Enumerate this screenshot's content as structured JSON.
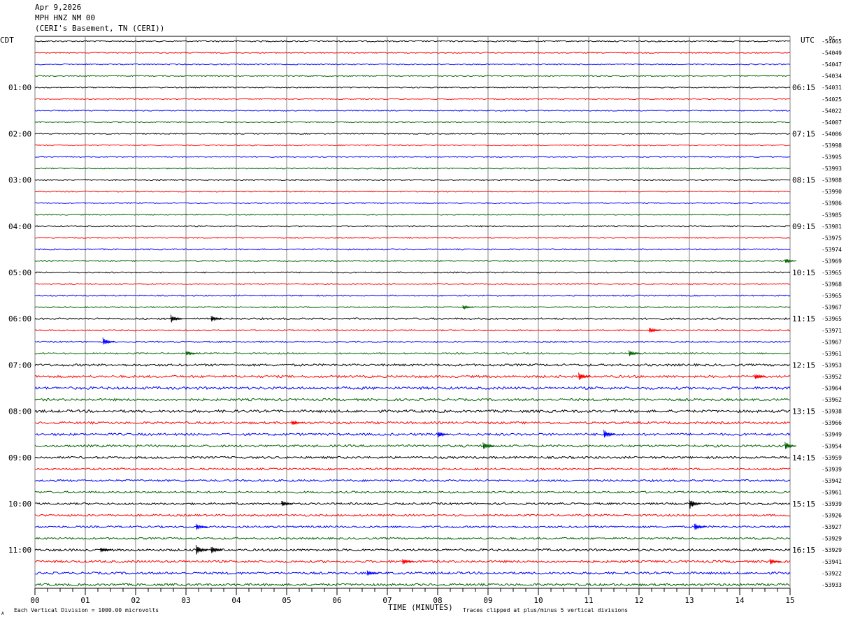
{
  "header": {
    "date": "Apr 9,2026",
    "station": "MPH HNZ NM 00",
    "location": "(CERI's Basement, TN (CERI))"
  },
  "labels": {
    "left_tz": "CDT",
    "right_tz": "UTC",
    "dc": "DC",
    "xlabel": "TIME (MINUTES)",
    "scale_note": "Each Vertical Division = 1000.00 microvolts",
    "clip_note": "Traces clipped at plus/minus 5 vertical divisions",
    "corner_mark": "A"
  },
  "colors": {
    "trace_cycle": [
      "#000000",
      "#ff0000",
      "#0000ff",
      "#006400"
    ],
    "grid": "#808080"
  },
  "chart_data": {
    "type": "line",
    "x_range": [
      0,
      15
    ],
    "x_ticks": [
      "00",
      "01",
      "02",
      "03",
      "04",
      "05",
      "06",
      "07",
      "08",
      "09",
      "10",
      "11",
      "12",
      "13",
      "14",
      "15"
    ],
    "left_hour_labels": [
      "01:00",
      "02:00",
      "03:00",
      "04:00",
      "05:00",
      "06:00",
      "07:00",
      "08:00",
      "09:00",
      "10:00",
      "11:00"
    ],
    "right_hour_labels": [
      "06:15",
      "07:15",
      "08:15",
      "09:15",
      "10:15",
      "11:15",
      "12:15",
      "13:15",
      "14:15",
      "15:15",
      "16:15"
    ],
    "dc_offsets": [
      "-54065",
      "-54049",
      "-54047",
      "-54034",
      "-54031",
      "-54025",
      "-54022",
      "-54007",
      "-54006",
      "-53998",
      "-53995",
      "-53993",
      "-53988",
      "-53990",
      "-53986",
      "-53985",
      "-53981",
      "-53975",
      "-53974",
      "-53969",
      "-53965",
      "-53968",
      "-53965",
      "-53967",
      "-53965",
      "-53971",
      "-53967",
      "-53961",
      "-53953",
      "-53952",
      "-53964",
      "-53962",
      "-53938",
      "-53966",
      "-53949",
      "-53954",
      "-53959",
      "-53939",
      "-53942",
      "-53961",
      "-53939",
      "-53926",
      "-53927",
      "-53929",
      "-53929",
      "-53941",
      "-53922",
      "-53933"
    ],
    "trace_noise": [
      1.0,
      0.8,
      0.8,
      0.8,
      0.8,
      0.8,
      0.8,
      0.8,
      0.8,
      0.8,
      0.8,
      0.8,
      0.9,
      0.8,
      0.8,
      0.8,
      0.9,
      0.8,
      0.9,
      0.9,
      0.9,
      0.9,
      0.9,
      0.9,
      1.2,
      1.0,
      1.0,
      1.1,
      1.6,
      1.6,
      1.8,
      1.6,
      1.8,
      1.6,
      1.6,
      1.6,
      1.5,
      1.4,
      1.4,
      1.4,
      1.4,
      1.4,
      1.4,
      1.3,
      1.6,
      1.6,
      1.6,
      1.6
    ],
    "events": [
      {
        "trace": 19,
        "minute": 14.9,
        "amp": 4
      },
      {
        "trace": 23,
        "minute": 8.5,
        "amp": 3
      },
      {
        "trace": 24,
        "minute": 2.7,
        "amp": 6
      },
      {
        "trace": 24,
        "minute": 3.5,
        "amp": 5
      },
      {
        "trace": 25,
        "minute": 12.2,
        "amp": 5
      },
      {
        "trace": 26,
        "minute": 1.35,
        "amp": 6
      },
      {
        "trace": 27,
        "minute": 3.0,
        "amp": 4
      },
      {
        "trace": 27,
        "minute": 11.8,
        "amp": 5
      },
      {
        "trace": 29,
        "minute": 10.8,
        "amp": 6
      },
      {
        "trace": 29,
        "minute": 14.3,
        "amp": 5
      },
      {
        "trace": 33,
        "minute": 5.1,
        "amp": 4
      },
      {
        "trace": 34,
        "minute": 11.3,
        "amp": 7
      },
      {
        "trace": 34,
        "minute": 8.0,
        "amp": 5
      },
      {
        "trace": 35,
        "minute": 8.9,
        "amp": 7
      },
      {
        "trace": 35,
        "minute": 14.9,
        "amp": 6
      },
      {
        "trace": 40,
        "minute": 4.9,
        "amp": 5
      },
      {
        "trace": 40,
        "minute": 13.0,
        "amp": 8
      },
      {
        "trace": 42,
        "minute": 3.2,
        "amp": 5
      },
      {
        "trace": 42,
        "minute": 13.1,
        "amp": 6
      },
      {
        "trace": 44,
        "minute": 3.2,
        "amp": 8
      },
      {
        "trace": 44,
        "minute": 3.5,
        "amp": 6
      },
      {
        "trace": 44,
        "minute": 1.3,
        "amp": 4
      },
      {
        "trace": 45,
        "minute": 7.3,
        "amp": 5
      },
      {
        "trace": 45,
        "minute": 14.6,
        "amp": 5
      },
      {
        "trace": 46,
        "minute": 6.6,
        "amp": 4
      }
    ]
  }
}
